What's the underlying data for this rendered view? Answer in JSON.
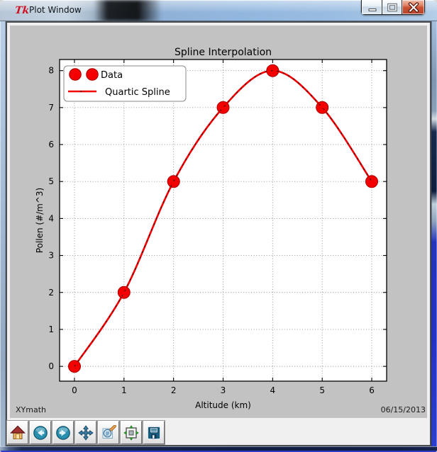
{
  "window": {
    "title": "Plot Window",
    "icon_text": "Tk",
    "controls": {
      "minimize": "minimize",
      "maximize": "maximize",
      "close": "close"
    }
  },
  "chart_data": {
    "type": "line",
    "title": "Spline Interpolation",
    "xlabel": "Altitude (km)",
    "ylabel": "Pollen (#/m^3)",
    "xlim": [
      -0.3,
      6.3
    ],
    "ylim": [
      -0.4,
      8.3
    ],
    "x_ticks": [
      0,
      1,
      2,
      3,
      4,
      5,
      6
    ],
    "y_ticks": [
      0,
      1,
      2,
      3,
      4,
      5,
      6,
      7,
      8
    ],
    "grid": true,
    "legend_position": "upper left",
    "series": [
      {
        "name": "Data",
        "type": "scatter",
        "marker": "circle",
        "color": "#f40000",
        "edge_color": "#a80000",
        "x": [
          0,
          1,
          2,
          3,
          4,
          5,
          6
        ],
        "y": [
          0,
          2,
          5,
          7,
          8,
          7,
          5
        ]
      },
      {
        "name": "Quartic Spline",
        "type": "smooth-line",
        "color": "#f40000",
        "dash_overlay_color": "#1a1a1a",
        "x": [
          0,
          1,
          2,
          3,
          4,
          5,
          6
        ],
        "y": [
          0,
          2,
          5,
          7,
          8,
          7,
          5
        ]
      }
    ]
  },
  "footer": {
    "left": "XYmath",
    "right": "06/15/2013"
  },
  "toolbar": {
    "buttons": [
      {
        "name": "home"
      },
      {
        "name": "back"
      },
      {
        "name": "forward"
      },
      {
        "name": "pan"
      },
      {
        "name": "zoom-to-rect"
      },
      {
        "name": "configure-subplots"
      },
      {
        "name": "save"
      }
    ]
  },
  "colors": {
    "accent_red": "#f40000",
    "figure_bg": "#c2c2c2",
    "axes_bg": "#ffffff"
  }
}
